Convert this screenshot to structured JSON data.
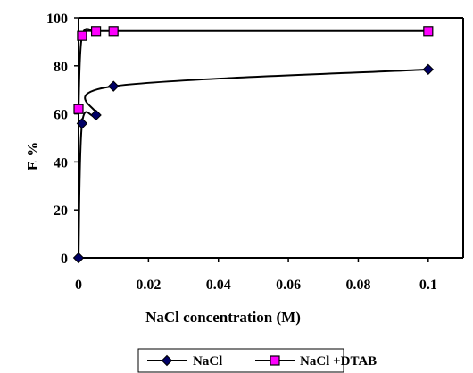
{
  "chart_data": {
    "type": "line",
    "title": "",
    "xlabel": "NaCl concentration (M)",
    "ylabel": "E %",
    "xlim": [
      0,
      0.11
    ],
    "ylim": [
      0,
      100
    ],
    "x_ticks": [
      "0",
      "0.02",
      "0.04",
      "0.06",
      "0.08",
      "0.1"
    ],
    "y_ticks": [
      "0",
      "20",
      "40",
      "60",
      "80",
      "100"
    ],
    "grid": false,
    "legend_position": "bottom",
    "series": [
      {
        "name": "NaCl",
        "color": "#000066",
        "marker": "diamond",
        "x": [
          0,
          0.001,
          0.005,
          0.01,
          0.1
        ],
        "y": [
          0,
          56,
          59.5,
          71.5,
          78.5
        ]
      },
      {
        "name": "NaCl +DTAB",
        "color": "#ff00ff",
        "marker": "square",
        "x": [
          0,
          0.001,
          0.005,
          0.01,
          0.1
        ],
        "y": [
          62,
          92.5,
          94.5,
          94.5,
          94.5
        ]
      }
    ]
  }
}
